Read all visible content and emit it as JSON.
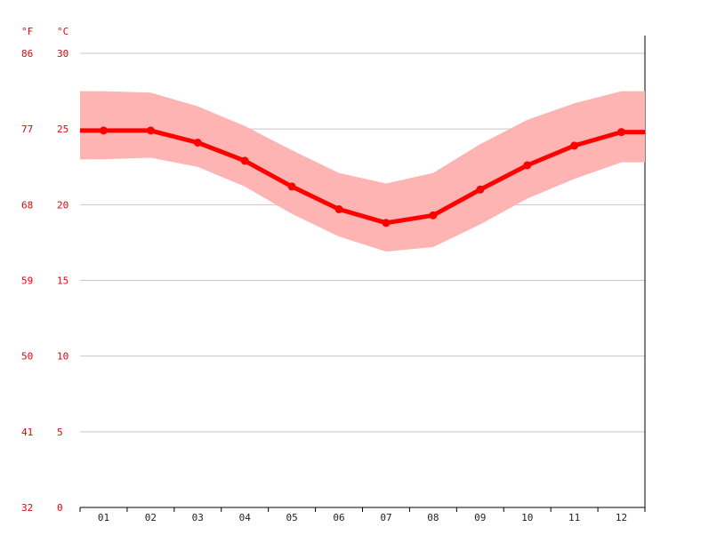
{
  "chart_data": {
    "type": "line",
    "categories": [
      "01",
      "02",
      "03",
      "04",
      "05",
      "06",
      "07",
      "08",
      "09",
      "10",
      "11",
      "12"
    ],
    "series": [
      {
        "values": [
          24.9,
          24.9,
          24.1,
          22.9,
          21.2,
          19.7,
          18.8,
          19.3,
          21.0,
          22.6,
          23.9,
          24.8
        ]
      },
      {
        "values": [
          27.5,
          27.4,
          26.5,
          25.2,
          23.6,
          22.1,
          21.4,
          22.1,
          24.0,
          25.6,
          26.7,
          27.5
        ]
      },
      {
        "values": [
          23.0,
          23.1,
          22.5,
          21.2,
          19.4,
          17.9,
          16.9,
          17.2,
          18.7,
          20.4,
          21.7,
          22.8
        ]
      }
    ],
    "y_ticks_c": [
      "0",
      "5",
      "10",
      "15",
      "20",
      "25",
      "30"
    ],
    "y_ticks_f": [
      "32",
      "41",
      "50",
      "59",
      "68",
      "77",
      "86"
    ],
    "unit_f": "°F",
    "unit_c": "°C",
    "ylim": [
      0,
      30
    ],
    "grid": true,
    "colors": {
      "line": "#ff0000",
      "band": "#ffb4b4",
      "axis_text": "#e8000b"
    }
  }
}
